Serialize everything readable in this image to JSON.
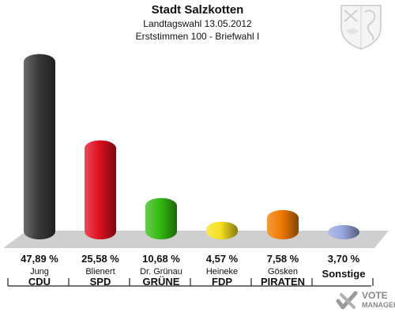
{
  "header": {
    "title": "Stadt Salzkotten",
    "subtitle1": "Landtagswahl 13.05.2012",
    "subtitle2": "Erststimmen 100 - Briefwahl I"
  },
  "chart_data": {
    "type": "bar",
    "categories": [
      "CDU",
      "SPD",
      "GRÜNE",
      "FDP",
      "PIRATEN",
      "Sonstige"
    ],
    "candidates": [
      "Jung",
      "Blienert",
      "Dr. Grünau",
      "Heineke",
      "Gösken",
      ""
    ],
    "values": [
      47.89,
      25.58,
      10.68,
      4.57,
      7.58,
      3.7
    ],
    "value_labels": [
      "47,89 %",
      "25,58 %",
      "10,68 %",
      "4,57 %",
      "7,58 %",
      "3,70 %"
    ],
    "colors": [
      "#3a3a3a",
      "#e01020",
      "#33bb11",
      "#f5e020",
      "#f07a00",
      "#98a8e0"
    ],
    "ylim": [
      0,
      50
    ]
  },
  "logo": {
    "line1": "VOTE",
    "line2": "MANAGER"
  }
}
